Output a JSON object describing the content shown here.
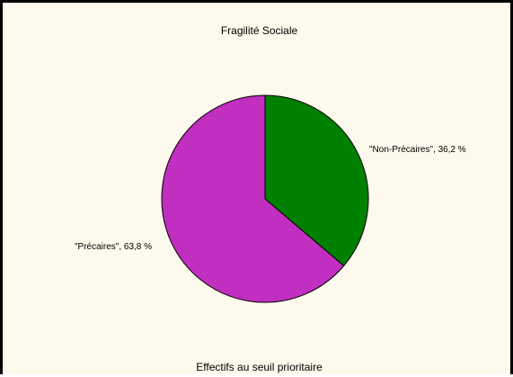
{
  "chart_data": {
    "type": "pie",
    "title": "Fragilité Sociale",
    "subtitle": "Effectifs au seuil prioritaire",
    "slices": [
      {
        "label": "\"Non-Précaires\"",
        "value": 36.2,
        "display": "\"Non-Précaires\", 36,2 %",
        "color": "#008000"
      },
      {
        "label": "\"Précaires\"",
        "value": 63.8,
        "display": "\"Précaires\", 63,8 %",
        "color": "#c02fc0"
      }
    ],
    "start_angle": "12 o'clock",
    "direction": "clockwise"
  }
}
